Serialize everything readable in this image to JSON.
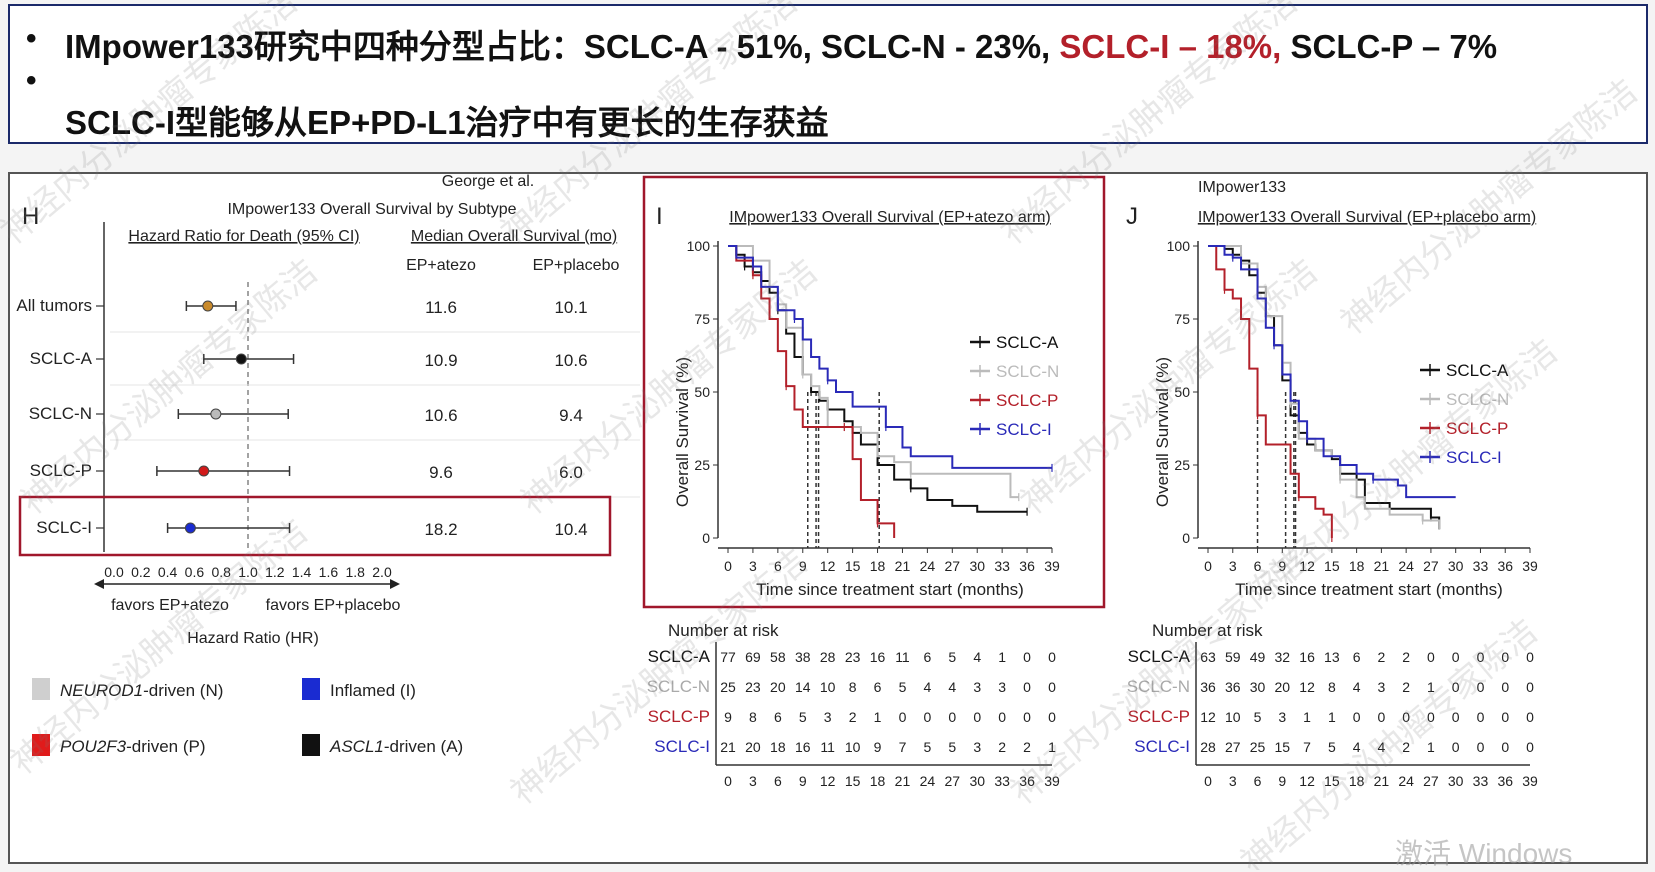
{
  "header": {
    "line1_prefix": "IMpower133研究中四种分型占比：SCLC-A - 51%, SCLC-N - 23%,",
    "line1_highlight": "SCLC-I – 18%,",
    "line1_suffix": "SCLC-P – 7%",
    "line2": "SCLC-I型能够从EP+PD-L1治疗中有更长的生存获益",
    "bullet": "•"
  },
  "panel_h": {
    "letter": "H",
    "source": "George et al.",
    "title": "IMpower133 Overall Survival by Subtype",
    "hr_header": "Hazard Ratio for Death (95% CI)",
    "median_header": "Median Overall Survival (mo)",
    "col1": "EP+atezo",
    "col2": "EP+placebo",
    "favors_left": "favors EP+atezo",
    "favors_right": "favors EP+placebo",
    "xlabel": "Hazard Ratio (HR)",
    "ticks": [
      "0.0",
      "0.2",
      "0.4",
      "0.6",
      "0.8",
      "1.0",
      "1.2",
      "1.4",
      "1.6",
      "1.8",
      "2.0"
    ],
    "rows": [
      {
        "label": "All tumors",
        "hr": 0.7,
        "lo": 0.54,
        "hi": 0.91,
        "atezo": "11.6",
        "placebo": "10.1",
        "color": "#c98a2b"
      },
      {
        "label": "SCLC-A",
        "hr": 0.95,
        "lo": 0.67,
        "hi": 1.34,
        "atezo": "10.9",
        "placebo": "10.6",
        "color": "#111111"
      },
      {
        "label": "SCLC-N",
        "hr": 0.76,
        "lo": 0.48,
        "hi": 1.3,
        "atezo": "10.6",
        "placebo": "9.4",
        "color": "#bbbbbb"
      },
      {
        "label": "SCLC-P",
        "hr": 0.67,
        "lo": 0.32,
        "hi": 1.31,
        "atezo": "9.6",
        "placebo": "6.0",
        "color": "#d11a1a"
      },
      {
        "label": "SCLC-I",
        "hr": 0.57,
        "lo": 0.4,
        "hi": 1.31,
        "atezo": "18.2",
        "placebo": "10.4",
        "color": "#1a2bd1"
      }
    ]
  },
  "legend_bottom": [
    {
      "text": "NEUROD1-driven (N)",
      "italic": "NEUROD1",
      "rest": "-driven (N)",
      "color": "#cfcfcf"
    },
    {
      "text": "Inflamed (I)",
      "italic": "",
      "rest": "Inflamed (I)",
      "color": "#1a2bd1"
    },
    {
      "text": "POU2F3-driven (P)",
      "italic": "POU2F3",
      "rest": "-driven (P)",
      "color": "#e01b1b"
    },
    {
      "text": "ASCL1-driven (A)",
      "italic": "ASCL1",
      "rest": "-driven (A)",
      "color": "#111111"
    }
  ],
  "chart_data": [
    {
      "type": "line",
      "panel": "I",
      "title": "IMpower133 Overall Survival (EP+atezo arm)",
      "xlabel": "Time since treatment start (months)",
      "ylabel": "Overall Survival (%)",
      "xlim": [
        0,
        39
      ],
      "ylim": [
        0,
        100
      ],
      "xticks": [
        0,
        3,
        6,
        9,
        12,
        15,
        18,
        21,
        24,
        27,
        30,
        33,
        36,
        39
      ],
      "yticks": [
        0,
        25,
        50,
        75,
        100
      ],
      "legend": [
        "SCLC-A",
        "SCLC-N",
        "SCLC-P",
        "SCLC-I"
      ],
      "medians": [
        9.6,
        10.6,
        10.9,
        18.2
      ],
      "series": [
        {
          "name": "SCLC-A",
          "color": "#111111",
          "points": [
            [
              0,
              100
            ],
            [
              1,
              97
            ],
            [
              2,
              93
            ],
            [
              3,
              91
            ],
            [
              4,
              88
            ],
            [
              5,
              84
            ],
            [
              6,
              78
            ],
            [
              7,
              70
            ],
            [
              8,
              62
            ],
            [
              9,
              56
            ],
            [
              10,
              50
            ],
            [
              11,
              47
            ],
            [
              12,
              44
            ],
            [
              14,
              40
            ],
            [
              15,
              36
            ],
            [
              16,
              32
            ],
            [
              18,
              25
            ],
            [
              20,
              20
            ],
            [
              22,
              17
            ],
            [
              24,
              13
            ],
            [
              27,
              11
            ],
            [
              30,
              9
            ],
            [
              36,
              9
            ]
          ]
        },
        {
          "name": "SCLC-N",
          "color": "#bbbbbb",
          "points": [
            [
              0,
              100
            ],
            [
              2,
              100
            ],
            [
              3,
              95
            ],
            [
              5,
              86
            ],
            [
              6,
              80
            ],
            [
              7,
              72
            ],
            [
              9,
              56
            ],
            [
              10,
              52
            ],
            [
              11,
              48
            ],
            [
              12,
              38
            ],
            [
              14,
              38
            ],
            [
              16,
              36
            ],
            [
              18,
              28
            ],
            [
              20,
              26
            ],
            [
              22,
              22
            ],
            [
              28,
              22
            ],
            [
              34,
              22
            ],
            [
              34,
              14
            ],
            [
              35,
              14
            ]
          ]
        },
        {
          "name": "SCLC-P",
          "color": "#b3202a",
          "points": [
            [
              0,
              100
            ],
            [
              1,
              95
            ],
            [
              3,
              90
            ],
            [
              4,
              82
            ],
            [
              5,
              75
            ],
            [
              6,
              64
            ],
            [
              7,
              52
            ],
            [
              8,
              44
            ],
            [
              9,
              38
            ],
            [
              12,
              38
            ],
            [
              14,
              38
            ],
            [
              15,
              27
            ],
            [
              16,
              13
            ],
            [
              18,
              13
            ],
            [
              18,
              5
            ],
            [
              20,
              5
            ],
            [
              20,
              0
            ]
          ]
        },
        {
          "name": "SCLC-I",
          "color": "#2a2ab8",
          "points": [
            [
              0,
              100
            ],
            [
              1,
              96
            ],
            [
              3,
              93
            ],
            [
              4,
              86
            ],
            [
              5,
              86
            ],
            [
              6,
              78
            ],
            [
              8,
              75
            ],
            [
              9,
              68
            ],
            [
              10,
              62
            ],
            [
              11,
              58
            ],
            [
              12,
              54
            ],
            [
              13,
              50
            ],
            [
              15,
              45
            ],
            [
              18,
              45
            ],
            [
              19,
              38
            ],
            [
              21,
              31
            ],
            [
              22,
              28
            ],
            [
              27,
              24
            ],
            [
              39,
              24
            ]
          ]
        }
      ],
      "risk_title": "Number at risk",
      "risk_x": [
        "0",
        "3",
        "6",
        "9",
        "12",
        "15",
        "18",
        "21",
        "24",
        "27",
        "30",
        "33",
        "36",
        "39"
      ],
      "risk": [
        {
          "name": "SCLC-A",
          "color": "#111111",
          "values": [
            "77",
            "69",
            "58",
            "38",
            "28",
            "23",
            "16",
            "11",
            "6",
            "5",
            "4",
            "1",
            "0",
            "0"
          ]
        },
        {
          "name": "SCLC-N",
          "color": "#aaaaaa",
          "values": [
            "25",
            "23",
            "20",
            "14",
            "10",
            "8",
            "6",
            "5",
            "4",
            "4",
            "3",
            "3",
            "0",
            "0"
          ]
        },
        {
          "name": "SCLC-P",
          "color": "#b3202a",
          "values": [
            "9",
            "8",
            "6",
            "5",
            "3",
            "2",
            "1",
            "0",
            "0",
            "0",
            "0",
            "0",
            "0",
            "0"
          ]
        },
        {
          "name": "SCLC-I",
          "color": "#2a2ab8",
          "values": [
            "21",
            "20",
            "18",
            "16",
            "11",
            "10",
            "9",
            "7",
            "5",
            "5",
            "3",
            "2",
            "2",
            "1"
          ]
        }
      ]
    },
    {
      "type": "line",
      "panel": "J",
      "above_title": "IMpower133",
      "title": "IMpower133 Overall Survival (EP+placebo arm)",
      "xlabel": "Time since treatment start (months)",
      "ylabel": "Overall Survival (%)",
      "xlim": [
        0,
        39
      ],
      "ylim": [
        0,
        100
      ],
      "xticks": [
        0,
        3,
        6,
        9,
        12,
        15,
        18,
        21,
        24,
        27,
        30,
        33,
        36,
        39
      ],
      "yticks": [
        0,
        25,
        50,
        75,
        100
      ],
      "legend": [
        "SCLC-A",
        "SCLC-N",
        "SCLC-P",
        "SCLC-I"
      ],
      "medians": [
        6.0,
        9.4,
        10.4,
        10.6
      ],
      "series": [
        {
          "name": "SCLC-A",
          "color": "#111111",
          "points": [
            [
              0,
              100
            ],
            [
              2,
              99
            ],
            [
              3,
              97
            ],
            [
              4,
              95
            ],
            [
              5,
              90
            ],
            [
              6,
              84
            ],
            [
              7,
              76
            ],
            [
              8,
              66
            ],
            [
              9,
              54
            ],
            [
              10,
              42
            ],
            [
              11,
              36
            ],
            [
              12,
              32
            ],
            [
              13,
              30
            ],
            [
              15,
              27
            ],
            [
              16,
              22
            ],
            [
              18,
              20
            ],
            [
              19,
              12
            ],
            [
              22,
              10
            ],
            [
              27,
              7
            ],
            [
              28,
              3
            ]
          ]
        },
        {
          "name": "SCLC-N",
          "color": "#bbbbbb",
          "points": [
            [
              0,
              100
            ],
            [
              3,
              100
            ],
            [
              4,
              94
            ],
            [
              6,
              86
            ],
            [
              7,
              76
            ],
            [
              9,
              60
            ],
            [
              10,
              46
            ],
            [
              11,
              34
            ],
            [
              13,
              30
            ],
            [
              15,
              28
            ],
            [
              16,
              20
            ],
            [
              18,
              14
            ],
            [
              19,
              10
            ],
            [
              22,
              8
            ],
            [
              26,
              6
            ],
            [
              28,
              3
            ]
          ]
        },
        {
          "name": "SCLC-P",
          "color": "#b3202a",
          "points": [
            [
              0,
              100
            ],
            [
              1,
              92
            ],
            [
              2,
              85
            ],
            [
              3,
              82
            ],
            [
              4,
              75
            ],
            [
              5,
              58
            ],
            [
              6,
              42
            ],
            [
              7,
              32
            ],
            [
              10,
              32
            ],
            [
              10,
              22
            ],
            [
              11,
              14
            ],
            [
              13,
              10
            ],
            [
              14,
              8
            ],
            [
              15,
              8
            ],
            [
              15,
              0
            ]
          ]
        },
        {
          "name": "SCLC-I",
          "color": "#2a2ab8",
          "points": [
            [
              0,
              100
            ],
            [
              2,
              97
            ],
            [
              3,
              96
            ],
            [
              4,
              92
            ],
            [
              6,
              82
            ],
            [
              7,
              72
            ],
            [
              8,
              66
            ],
            [
              9,
              56
            ],
            [
              10,
              47
            ],
            [
              11,
              40
            ],
            [
              12,
              34
            ],
            [
              14,
              28
            ],
            [
              16,
              25
            ],
            [
              18,
              22
            ],
            [
              20,
              20
            ],
            [
              23,
              18
            ],
            [
              24,
              14
            ],
            [
              30,
              14
            ]
          ]
        }
      ],
      "risk_title": "Number at risk",
      "risk_x": [
        "0",
        "3",
        "6",
        "9",
        "12",
        "15",
        "18",
        "21",
        "24",
        "27",
        "30",
        "33",
        "36",
        "39"
      ],
      "risk": [
        {
          "name": "SCLC-A",
          "color": "#111111",
          "values": [
            "63",
            "59",
            "49",
            "32",
            "16",
            "13",
            "6",
            "2",
            "2",
            "0",
            "0",
            "0",
            "0",
            "0"
          ]
        },
        {
          "name": "SCLC-N",
          "color": "#aaaaaa",
          "values": [
            "36",
            "36",
            "30",
            "20",
            "12",
            "8",
            "4",
            "3",
            "2",
            "1",
            "0",
            "0",
            "0",
            "0"
          ]
        },
        {
          "name": "SCLC-P",
          "color": "#b3202a",
          "values": [
            "12",
            "10",
            "5",
            "3",
            "1",
            "1",
            "0",
            "0",
            "0",
            "0",
            "0",
            "0",
            "0",
            "0"
          ]
        },
        {
          "name": "SCLC-I",
          "color": "#2a2ab8",
          "values": [
            "28",
            "27",
            "25",
            "15",
            "7",
            "5",
            "4",
            "4",
            "2",
            "1",
            "0",
            "0",
            "0",
            "0"
          ]
        }
      ]
    }
  ],
  "watermark": "神经内分泌肿瘤专家陈洁",
  "os_watermark": "激活 Windows",
  "colors": {
    "highlight_red": "#b3202a",
    "box_red": "#a0172b",
    "header_border": "#1b2a6a"
  }
}
